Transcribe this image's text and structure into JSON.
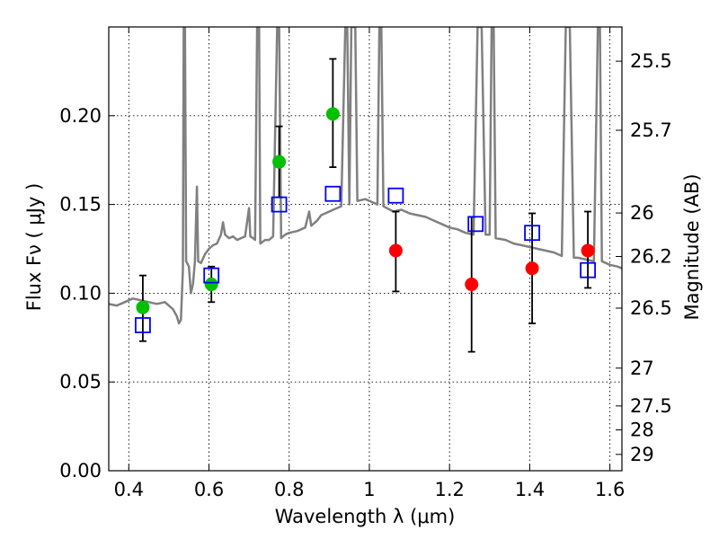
{
  "chart_data": {
    "type": "scatter",
    "title": "",
    "xlabel": "Wavelength  λ (μm)",
    "ylabel_left": "Flux  Fν  ( μJy )",
    "ylabel_right": "Magnitude (AB)",
    "xlim": [
      0.35,
      1.63
    ],
    "ylim": [
      0.0,
      0.25
    ],
    "grid": true,
    "x_ticks": [
      {
        "value": 0.4,
        "label": "0.4"
      },
      {
        "value": 0.6,
        "label": "0.6"
      },
      {
        "value": 0.8,
        "label": "0.8"
      },
      {
        "value": 1.0,
        "label": "1"
      },
      {
        "value": 1.2,
        "label": "1.2"
      },
      {
        "value": 1.4,
        "label": "1.4"
      },
      {
        "value": 1.6,
        "label": "1.6"
      }
    ],
    "y_ticks": [
      {
        "value": 0.0,
        "label": "0.00"
      },
      {
        "value": 0.05,
        "label": "0.05"
      },
      {
        "value": 0.1,
        "label": "0.10"
      },
      {
        "value": 0.15,
        "label": "0.15"
      },
      {
        "value": 0.2,
        "label": "0.20"
      }
    ],
    "right_ticks": [
      {
        "flux": 0.2307,
        "label": "25.5"
      },
      {
        "flux": 0.1918,
        "label": "25.7"
      },
      {
        "flux": 0.1452,
        "label": "26"
      },
      {
        "flux": 0.1207,
        "label": "26.2"
      },
      {
        "flux": 0.0916,
        "label": "26.5"
      },
      {
        "flux": 0.0578,
        "label": "27"
      },
      {
        "flux": 0.0365,
        "label": "27.5"
      },
      {
        "flux": 0.023,
        "label": "28"
      },
      {
        "flux": 0.0092,
        "label": "29"
      }
    ],
    "series": [
      {
        "color": "#00c000",
        "marker": "circle",
        "points": [
          {
            "x": 0.435,
            "y": 0.092,
            "lo": 0.073,
            "hi": 0.11
          },
          {
            "x": 0.606,
            "y": 0.105,
            "lo": 0.095,
            "hi": 0.115
          },
          {
            "x": 0.775,
            "y": 0.174,
            "lo": 0.154,
            "hi": 0.194
          },
          {
            "x": 0.909,
            "y": 0.201,
            "lo": 0.171,
            "hi": 0.232
          }
        ]
      },
      {
        "color": "#ff0000",
        "marker": "circle",
        "points": [
          {
            "x": 1.066,
            "y": 0.124,
            "lo": 0.101,
            "hi": 0.146
          },
          {
            "x": 1.255,
            "y": 0.105,
            "lo": 0.067,
            "hi": 0.143
          },
          {
            "x": 1.406,
            "y": 0.114,
            "lo": 0.083,
            "hi": 0.145
          },
          {
            "x": 1.545,
            "y": 0.124,
            "lo": 0.103,
            "hi": 0.146
          }
        ]
      },
      {
        "color": "#0000ff",
        "marker": "open-square",
        "points": [
          {
            "x": 0.435,
            "y": 0.082
          },
          {
            "x": 0.606,
            "y": 0.11
          },
          {
            "x": 0.775,
            "y": 0.15
          },
          {
            "x": 0.909,
            "y": 0.156
          },
          {
            "x": 1.066,
            "y": 0.155
          },
          {
            "x": 1.265,
            "y": 0.139
          },
          {
            "x": 1.406,
            "y": 0.134
          },
          {
            "x": 1.545,
            "y": 0.113
          }
        ]
      }
    ],
    "model_spectrum": {
      "color": "#808080",
      "points": [
        [
          0.35,
          0.094
        ],
        [
          0.37,
          0.093
        ],
        [
          0.39,
          0.095
        ],
        [
          0.41,
          0.097
        ],
        [
          0.43,
          0.096
        ],
        [
          0.45,
          0.095
        ],
        [
          0.47,
          0.094
        ],
        [
          0.49,
          0.095
        ],
        [
          0.51,
          0.091
        ],
        [
          0.52,
          0.087
        ],
        [
          0.525,
          0.083
        ],
        [
          0.53,
          0.085
        ],
        [
          0.535,
          0.113
        ],
        [
          0.537,
          0.25
        ],
        [
          0.54,
          0.25
        ],
        [
          0.543,
          0.118
        ],
        [
          0.55,
          0.115
        ],
        [
          0.555,
          0.1
        ],
        [
          0.56,
          0.105
        ],
        [
          0.565,
          0.118
        ],
        [
          0.57,
          0.16
        ],
        [
          0.573,
          0.118
        ],
        [
          0.58,
          0.117
        ],
        [
          0.59,
          0.122
        ],
        [
          0.6,
          0.125
        ],
        [
          0.61,
          0.127
        ],
        [
          0.62,
          0.128
        ],
        [
          0.63,
          0.133
        ],
        [
          0.635,
          0.14
        ],
        [
          0.64,
          0.133
        ],
        [
          0.65,
          0.131
        ],
        [
          0.66,
          0.132
        ],
        [
          0.67,
          0.13
        ],
        [
          0.68,
          0.131
        ],
        [
          0.69,
          0.132
        ],
        [
          0.7,
          0.148
        ],
        [
          0.703,
          0.132
        ],
        [
          0.71,
          0.131
        ],
        [
          0.715,
          0.13
        ],
        [
          0.72,
          0.25
        ],
        [
          0.725,
          0.25
        ],
        [
          0.728,
          0.128
        ],
        [
          0.74,
          0.13
        ],
        [
          0.75,
          0.13
        ],
        [
          0.76,
          0.132
        ],
        [
          0.77,
          0.25
        ],
        [
          0.775,
          0.25
        ],
        [
          0.78,
          0.131
        ],
        [
          0.79,
          0.133
        ],
        [
          0.8,
          0.134
        ],
        [
          0.82,
          0.135
        ],
        [
          0.84,
          0.137
        ],
        [
          0.85,
          0.146
        ],
        [
          0.855,
          0.138
        ],
        [
          0.87,
          0.141
        ],
        [
          0.88,
          0.144
        ],
        [
          0.89,
          0.145
        ],
        [
          0.9,
          0.146
        ],
        [
          0.91,
          0.147
        ],
        [
          0.93,
          0.149
        ],
        [
          0.94,
          0.25
        ],
        [
          0.945,
          0.25
        ],
        [
          0.95,
          0.15
        ],
        [
          0.955,
          0.25
        ],
        [
          0.965,
          0.25
        ],
        [
          0.97,
          0.152
        ],
        [
          0.99,
          0.153
        ],
        [
          1.0,
          0.152
        ],
        [
          1.02,
          0.15
        ],
        [
          1.025,
          0.25
        ],
        [
          1.03,
          0.25
        ],
        [
          1.035,
          0.149
        ],
        [
          1.06,
          0.146
        ],
        [
          1.08,
          0.147
        ],
        [
          1.1,
          0.145
        ],
        [
          1.12,
          0.144
        ],
        [
          1.14,
          0.143
        ],
        [
          1.16,
          0.141
        ],
        [
          1.18,
          0.139
        ],
        [
          1.2,
          0.137
        ],
        [
          1.22,
          0.136
        ],
        [
          1.24,
          0.134
        ],
        [
          1.26,
          0.133
        ],
        [
          1.27,
          0.25
        ],
        [
          1.28,
          0.25
        ],
        [
          1.29,
          0.133
        ],
        [
          1.3,
          0.133
        ],
        [
          1.305,
          0.25
        ],
        [
          1.31,
          0.25
        ],
        [
          1.315,
          0.131
        ],
        [
          1.34,
          0.13
        ],
        [
          1.36,
          0.128
        ],
        [
          1.38,
          0.127
        ],
        [
          1.4,
          0.126
        ],
        [
          1.42,
          0.125
        ],
        [
          1.44,
          0.124
        ],
        [
          1.46,
          0.123
        ],
        [
          1.48,
          0.121
        ],
        [
          1.49,
          0.25
        ],
        [
          1.5,
          0.25
        ],
        [
          1.51,
          0.12
        ],
        [
          1.52,
          0.12
        ],
        [
          1.54,
          0.119
        ],
        [
          1.56,
          0.118
        ],
        [
          1.57,
          0.25
        ],
        [
          1.575,
          0.25
        ],
        [
          1.58,
          0.118
        ],
        [
          1.6,
          0.116
        ],
        [
          1.62,
          0.115
        ],
        [
          1.63,
          0.114
        ]
      ]
    }
  }
}
